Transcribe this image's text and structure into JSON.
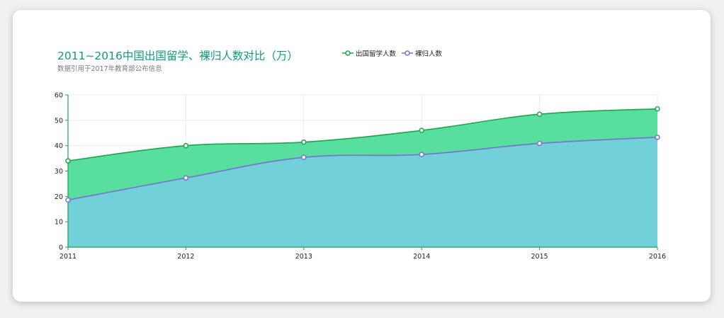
{
  "title": "2011~2016中国出国留学、裸归人数对比（万）",
  "subtitle": "数据引用于2017年教育部公布信息",
  "chart_data": {
    "type": "area",
    "title": "2011~2016中国出国留学、裸归人数对比（万）",
    "subtitle": "数据引用于2017年教育部公布信息",
    "x": [
      "2011",
      "2012",
      "2013",
      "2014",
      "2015",
      "2016"
    ],
    "ylim": [
      0,
      60
    ],
    "yticks": [
      0,
      10,
      20,
      30,
      40,
      50,
      60
    ],
    "grid": true,
    "legend_position": "top",
    "series": [
      {
        "name": "出国留学人数",
        "values": [
          34.0,
          40.0,
          41.4,
          46.0,
          52.4,
          54.5
        ],
        "color": "#1aa64a",
        "fill": "#4fdc99"
      },
      {
        "name": "裸归人数",
        "values": [
          18.6,
          27.3,
          35.4,
          36.5,
          40.9,
          43.3
        ],
        "color": "#7a6fd0",
        "fill": "#74cfdb"
      }
    ]
  }
}
